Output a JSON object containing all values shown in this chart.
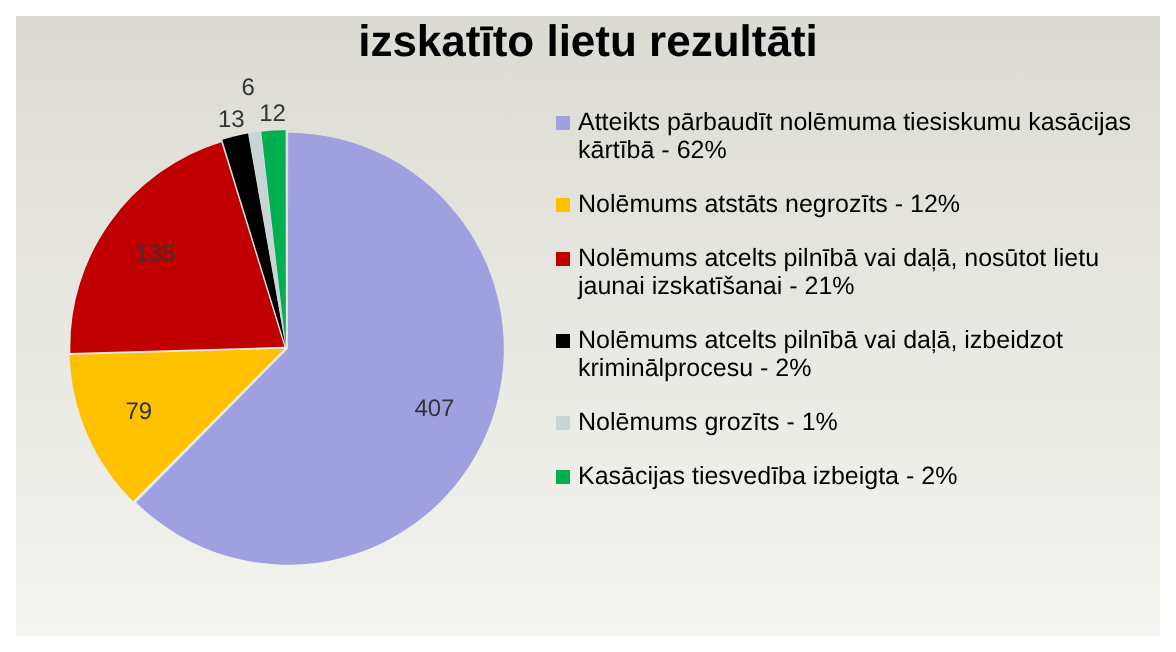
{
  "chart_data": {
    "type": "pie",
    "title": "izskatīto lietu rezultāti",
    "categories": [
      "Atteikts pārbaudīt nolēmuma tiesiskumu kasācijas kārtībā - 62%",
      "Nolēmums atstāts negrozīts - 12%",
      "Nolēmums atcelts pilnībā vai daļā, nosūtot lietu jaunai izskatīšanai - 21%",
      "Nolēmums atcelts pilnībā vai daļā, izbeidzot kriminālprocesu - 2%",
      "Nolēmums grozīts - 1%",
      "Kasācijas tiesvedība izbeigta - 2%"
    ],
    "values": [
      407,
      79,
      135,
      13,
      6,
      12
    ],
    "colors": [
      "#a0a0e0",
      "#ffc000",
      "#c00000",
      "#000000",
      "#c8d4d8",
      "#00b050"
    ],
    "data_labels": true,
    "legend": "right"
  }
}
